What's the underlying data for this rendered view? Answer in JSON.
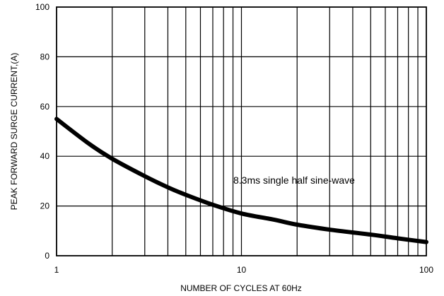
{
  "chart_data": {
    "type": "line",
    "title": "",
    "xlabel": "NUMBER OF CYCLES AT 60Hz",
    "ylabel": "PEAK FORWARD SURGE CURRENT,(A)",
    "xscale": "log",
    "xlim": [
      1,
      100
    ],
    "ylim": [
      0,
      100
    ],
    "grid": true,
    "x_ticks": [
      1,
      10,
      100
    ],
    "x_tick_labels": [
      "1",
      "10",
      "100"
    ],
    "y_ticks": [
      0,
      20,
      40,
      60,
      80,
      100
    ],
    "y_tick_labels": [
      "0",
      "20",
      "40",
      "60",
      "80",
      "100"
    ],
    "annotation": "8.3ms single half sine-wave",
    "series": [
      {
        "x": [
          1,
          1.5,
          2,
          3,
          4,
          5,
          7,
          10,
          15,
          20,
          30,
          50,
          70,
          100
        ],
        "values": [
          55,
          45,
          39,
          32,
          27.5,
          24.5,
          20.5,
          17,
          14.5,
          12.5,
          10.5,
          8.5,
          7,
          5.5
        ]
      }
    ],
    "colors": {
      "line": "#000000",
      "grid": "#000000",
      "background": "#ffffff"
    }
  }
}
